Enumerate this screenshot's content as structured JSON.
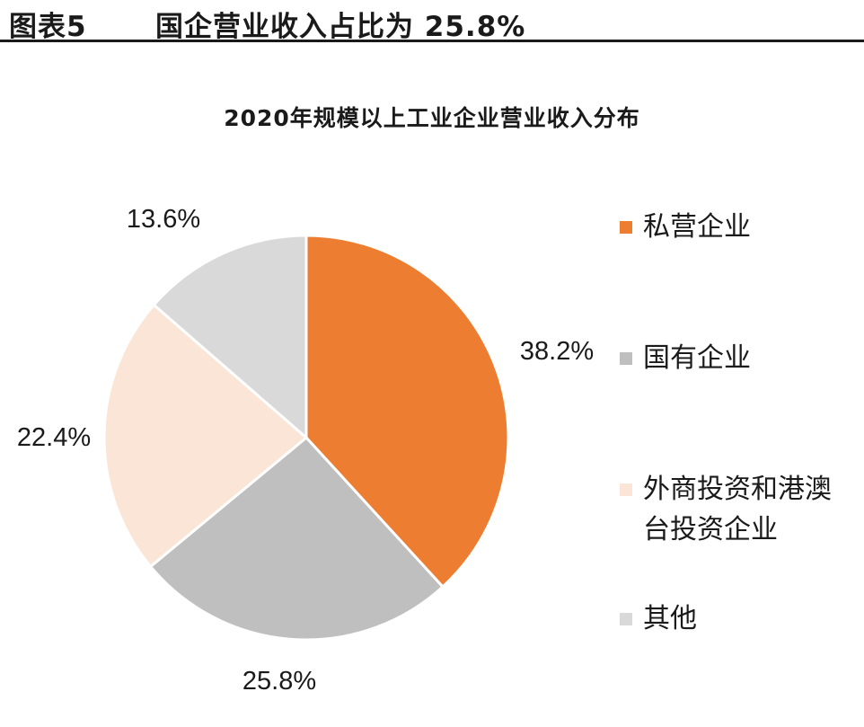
{
  "header": {
    "figure_label": "图表5",
    "figure_title": "国企营业收入占比为 25.8%"
  },
  "chart_data": {
    "type": "pie",
    "title": "2020年规模以上工业企业营业收入分布",
    "slices": [
      {
        "label": "私营企业",
        "value": 38.2,
        "display": "38.2%",
        "color": "#ED7D31"
      },
      {
        "label": "国有企业",
        "value": 25.8,
        "display": "25.8%",
        "color": "#BFBFBF"
      },
      {
        "label": "外商投资和港澳台投资企业",
        "value": 22.4,
        "display": "22.4%",
        "color": "#FBE5D6"
      },
      {
        "label": "其他",
        "value": 13.6,
        "display": "13.6%",
        "color": "#D9D9D9"
      }
    ],
    "legend_position": "right"
  }
}
